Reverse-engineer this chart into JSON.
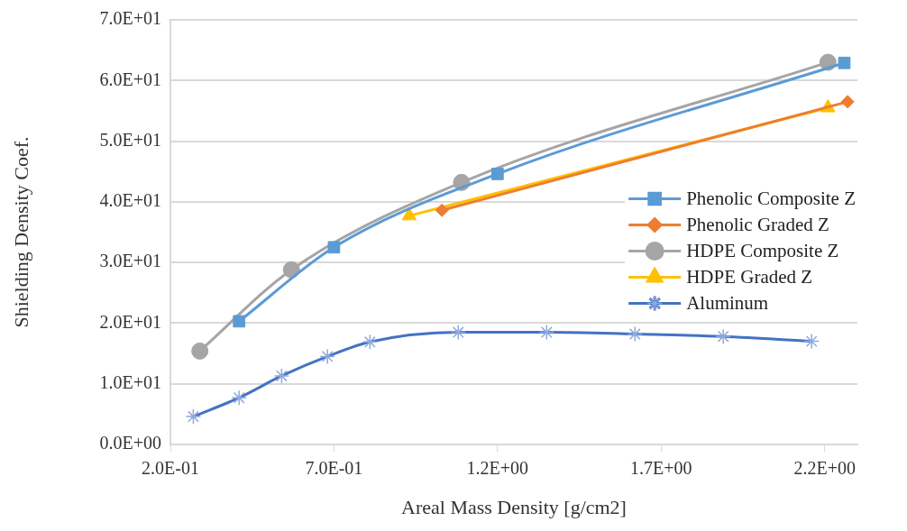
{
  "chart_data": {
    "type": "line",
    "xlabel": "Areal Mass Density [g/cm2]",
    "ylabel": "Shielding Density Coef.",
    "xlim": [
      0.2,
      2.3
    ],
    "xticks": [
      {
        "value": 0.2,
        "label": "2.0E-01"
      },
      {
        "value": 0.7,
        "label": "7.0E-01"
      },
      {
        "value": 1.2,
        "label": "1.2E+00"
      },
      {
        "value": 1.7,
        "label": "1.7E+00"
      },
      {
        "value": 2.2,
        "label": "2.2E+00"
      }
    ],
    "ylim": [
      0,
      70
    ],
    "yticks": [
      {
        "value": 0,
        "label": "0.0E+00"
      },
      {
        "value": 10,
        "label": "1.0E+01"
      },
      {
        "value": 20,
        "label": "2.0E+01"
      },
      {
        "value": 30,
        "label": "3.0E+01"
      },
      {
        "value": 40,
        "label": "4.0E+01"
      },
      {
        "value": 50,
        "label": "5.0E+01"
      },
      {
        "value": 60,
        "label": "6.0E+01"
      },
      {
        "value": 70,
        "label": "7.0E+01"
      }
    ],
    "grid": "y",
    "legend": "right",
    "series": [
      {
        "name": "Phenolic Composite Z",
        "color": "#5b9bd5",
        "marker": "square",
        "x": [
          0.41,
          0.7,
          1.2,
          2.26
        ],
        "values": [
          20.3,
          32.5,
          44.6,
          62.9
        ]
      },
      {
        "name": "Phenolic Graded Z",
        "color": "#ed7d31",
        "marker": "diamond",
        "x": [
          1.03,
          2.27
        ],
        "values": [
          38.6,
          56.5
        ]
      },
      {
        "name": "HDPE Composite Z",
        "color": "#a5a5a5",
        "marker": "circle",
        "x": [
          0.29,
          0.57,
          1.09,
          2.21
        ],
        "values": [
          15.4,
          28.8,
          43.2,
          63.0
        ]
      },
      {
        "name": "HDPE Graded Z",
        "color": "#ffc000",
        "marker": "triangle",
        "x": [
          0.93,
          2.21
        ],
        "values": [
          37.7,
          55.5
        ]
      },
      {
        "name": "Aluminum",
        "color": "#4472c4",
        "marker": "cross",
        "x": [
          0.27,
          0.41,
          0.54,
          0.68,
          0.81,
          1.08,
          1.35,
          1.62,
          1.89,
          2.16
        ],
        "values": [
          4.6,
          7.7,
          11.3,
          14.5,
          16.9,
          18.5,
          18.5,
          18.2,
          17.8,
          17.0
        ]
      }
    ]
  }
}
